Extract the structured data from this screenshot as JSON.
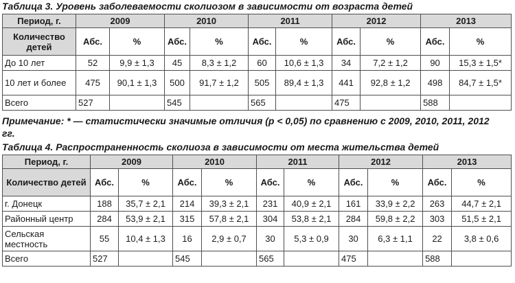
{
  "table3": {
    "caption_prefix": "Таблица 3.",
    "caption_text": "Уровень заболеваемости сколиозом в зависимости от возраста детей",
    "period_label": "Период, г.",
    "years": [
      "2009",
      "2010",
      "2011",
      "2012",
      "2013"
    ],
    "count_label": "Количество детей",
    "abs_label": "Абс.",
    "pct_label": "%",
    "rows": [
      {
        "label": "До 10 лет",
        "cells": [
          "52",
          "9,9 ± 1,3",
          "45",
          "8,3 ± 1,2",
          "60",
          "10,6 ± 1,3",
          "34",
          "7,2 ± 1,2",
          "90",
          "15,3 ± 1,5*"
        ]
      },
      {
        "label": "10 лет и более",
        "cells": [
          "475",
          "90,1 ± 1,3",
          "500",
          "91,7 ± 1,2",
          "505",
          "89,4 ± 1,3",
          "441",
          "92,8 ± 1,2",
          "498",
          "84,7 ± 1,5*"
        ]
      },
      {
        "label": "Всего",
        "cells": [
          "527",
          "",
          "545",
          "",
          "565",
          "",
          "475",
          "",
          "588",
          ""
        ]
      }
    ]
  },
  "note": "Примечание: * — статистически значимые отличия (p < 0,05) по сравнению с 2009, 2010, 2011, 2012 гг.",
  "table4": {
    "caption_prefix": "Таблица 4.",
    "caption_text": "Распространенность сколиоза в зависимости от места жительства детей",
    "period_label": "Период, г.",
    "years": [
      "2009",
      "2010",
      "2011",
      "2012",
      "2013"
    ],
    "count_label": "Количество детей",
    "abs_label": "Абс.",
    "pct_label": "%",
    "rows": [
      {
        "label": "г. Донецк",
        "cells": [
          "188",
          "35,7 ± 2,1",
          "214",
          "39,3 ± 2,1",
          "231",
          "40,9 ± 2,1",
          "161",
          "33,9 ± 2,2",
          "263",
          "44,7 ± 2,1"
        ]
      },
      {
        "label": "Районный центр",
        "cells": [
          "284",
          "53,9 ± 2,1",
          "315",
          "57,8 ± 2,1",
          "304",
          "53,8 ± 2,1",
          "284",
          "59,8 ± 2,2",
          "303",
          "51,5 ± 2,1"
        ]
      },
      {
        "label": "Сельская местность",
        "cells": [
          "55",
          "10,4 ± 1,3",
          "16",
          "2,9 ± 0,7",
          "30",
          "5,3 ± 0,9",
          "30",
          "6,3 ± 1,1",
          "22",
          "3,8 ± 0,6"
        ]
      },
      {
        "label": "Всего",
        "cells": [
          "527",
          "",
          "545",
          "",
          "565",
          "",
          "475",
          "",
          "588",
          ""
        ]
      }
    ]
  }
}
